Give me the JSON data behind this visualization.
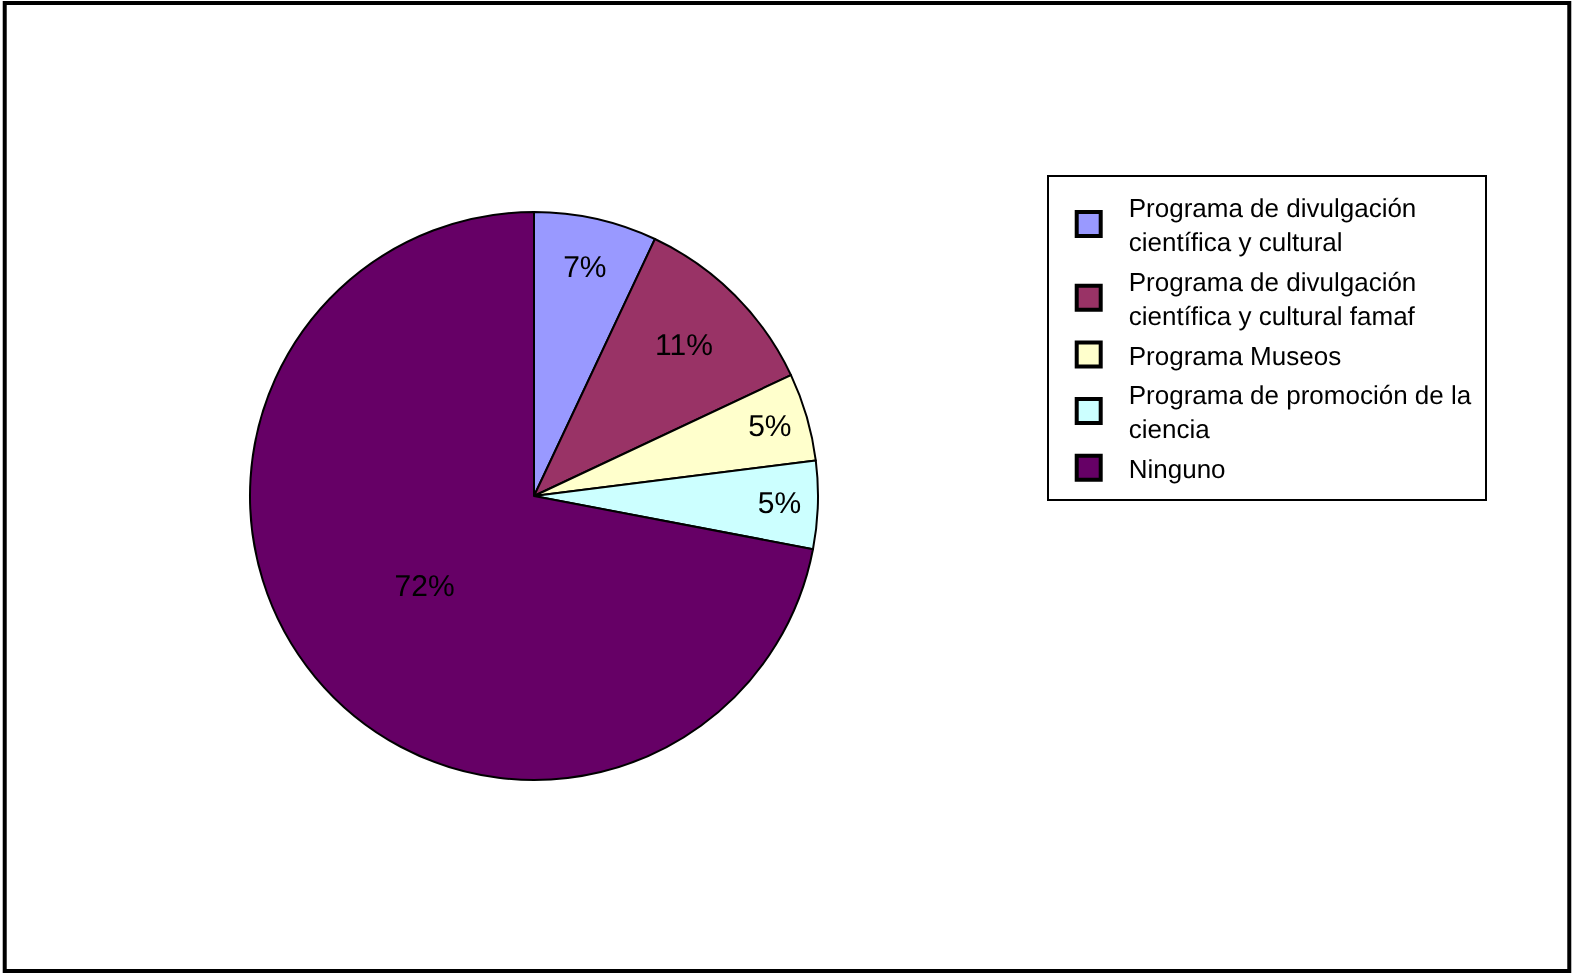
{
  "chart_data": {
    "type": "pie",
    "categories": [
      "Programa de divulgación científica y cultural",
      "Programa de divulgación científica y cultural famaf",
      "Programa Museos",
      "Programa de promoción de la ciencia",
      "Ninguno"
    ],
    "values": [
      7,
      11,
      5,
      5,
      72
    ],
    "value_labels": [
      "7%",
      "11%",
      "5%",
      "5%",
      "72%"
    ],
    "colors": [
      "#9999ff",
      "#993366",
      "#ffffcc",
      "#ccffff",
      "#660066"
    ],
    "legend": "right"
  }
}
